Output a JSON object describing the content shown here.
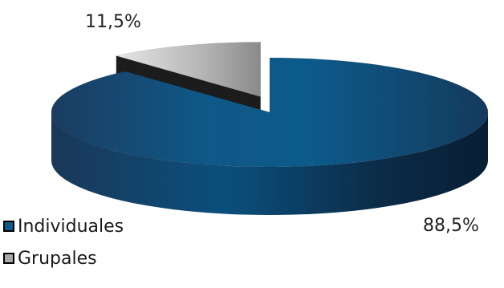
{
  "chart_data": {
    "type": "pie",
    "style": "3d-exploded",
    "slices": [
      {
        "label": "Individuales",
        "value": 88.5,
        "value_label": "88,5%",
        "color": "#0c5a8a"
      },
      {
        "label": "Grupales",
        "value": 11.5,
        "value_label": "11,5%",
        "color": "#a8a8a8"
      }
    ],
    "legend_position": "bottom-left"
  }
}
